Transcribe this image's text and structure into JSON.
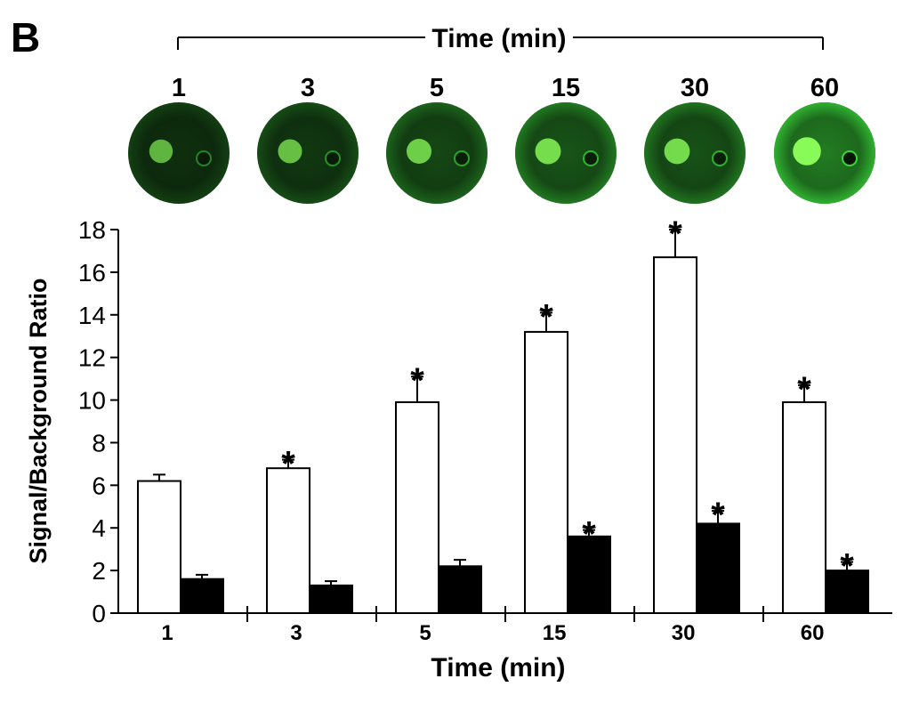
{
  "panel_label": "B",
  "header": {
    "title": "Time (min)"
  },
  "images": {
    "labels": [
      "1",
      "3",
      "5",
      "15",
      "30",
      "60"
    ],
    "colors": {
      "dark": "#050a05",
      "glow": "#3de63d",
      "bright": "#8cff5a"
    },
    "brightness": [
      0.3,
      0.38,
      0.5,
      0.62,
      0.6,
      0.95
    ]
  },
  "chart_data": {
    "type": "bar",
    "categories": [
      "1",
      "3",
      "5",
      "15",
      "30",
      "60"
    ],
    "series": [
      {
        "values": [
          6.2,
          6.8,
          9.9,
          13.2,
          16.7,
          9.9
        ],
        "errors": [
          0.3,
          0.4,
          1.2,
          0.9,
          1.3,
          0.8
        ],
        "significant": [
          false,
          true,
          true,
          true,
          true,
          true
        ],
        "fill": "#ffffff"
      },
      {
        "values": [
          1.6,
          1.3,
          2.2,
          3.6,
          4.2,
          2.0
        ],
        "errors": [
          0.2,
          0.2,
          0.3,
          0.3,
          0.6,
          0.4
        ],
        "significant": [
          false,
          false,
          false,
          true,
          true,
          true
        ],
        "fill": "#000000"
      }
    ],
    "ylim": [
      0,
      18
    ],
    "yticks": [
      0,
      2,
      4,
      6,
      8,
      10,
      12,
      14,
      16,
      18
    ],
    "xlabel": "Time (min)",
    "ylabel": "Signal/Background Ratio",
    "significance_marker": "*"
  }
}
